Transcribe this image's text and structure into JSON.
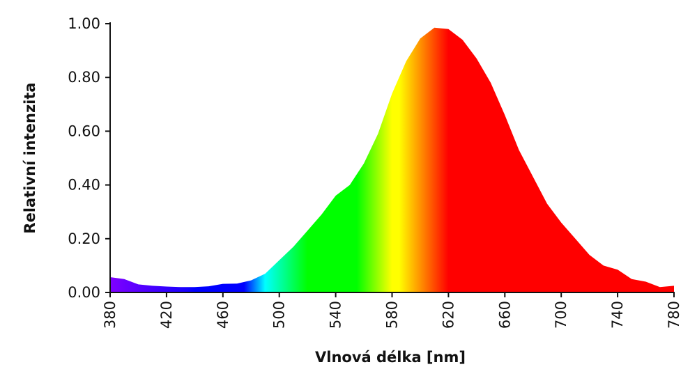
{
  "chart_data": {
    "type": "area",
    "xlabel": "Vlnová délka [nm]",
    "ylabel": "Relativní intenzita",
    "x": [
      380,
      390,
      400,
      410,
      420,
      430,
      440,
      450,
      460,
      470,
      480,
      490,
      500,
      510,
      520,
      530,
      540,
      550,
      560,
      570,
      580,
      590,
      600,
      610,
      620,
      630,
      640,
      650,
      660,
      670,
      680,
      690,
      700,
      710,
      720,
      730,
      740,
      750,
      760,
      770,
      780
    ],
    "values": [
      0.057,
      0.05,
      0.03,
      0.025,
      0.022,
      0.02,
      0.02,
      0.023,
      0.032,
      0.033,
      0.045,
      0.07,
      0.12,
      0.17,
      0.23,
      0.29,
      0.36,
      0.4,
      0.48,
      0.59,
      0.74,
      0.86,
      0.945,
      0.985,
      0.98,
      0.94,
      0.87,
      0.78,
      0.66,
      0.53,
      0.43,
      0.33,
      0.26,
      0.2,
      0.14,
      0.1,
      0.085,
      0.05,
      0.04,
      0.02,
      0.025
    ],
    "xlim": [
      380,
      780
    ],
    "xticks": [
      380,
      420,
      460,
      500,
      540,
      580,
      620,
      660,
      700,
      740,
      780
    ],
    "ylim": [
      0,
      1
    ],
    "yticks": [
      {
        "value": 0,
        "label": "0.00"
      },
      {
        "value": 0.2,
        "label": "0.20"
      },
      {
        "value": 0.4,
        "label": "0.40"
      },
      {
        "value": 0.6,
        "label": "0.60"
      },
      {
        "value": 0.8,
        "label": "0.80"
      },
      {
        "value": 1,
        "label": "1.00"
      }
    ],
    "color": "spectral",
    "grid": false
  }
}
